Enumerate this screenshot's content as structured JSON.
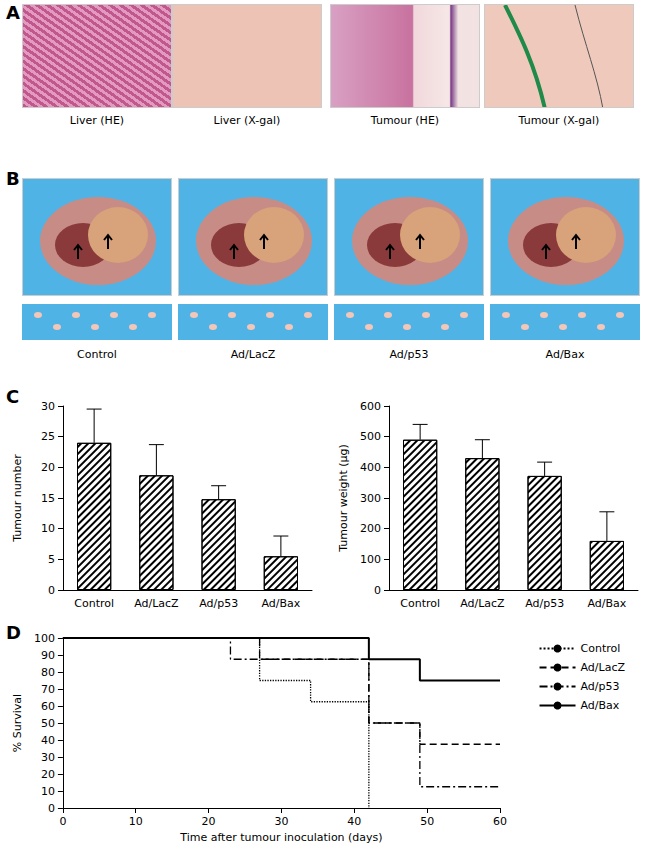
{
  "panel_labels": [
    "A",
    "B",
    "C",
    "D"
  ],
  "panel_A": {
    "images": [
      "Liver (HE)",
      "Liver (X-gal)",
      "Tumour (HE)",
      "Tumour (X-gal)"
    ]
  },
  "panel_B": {
    "images": [
      "Control",
      "Ad/LacZ",
      "Ad/p53",
      "Ad/Bax"
    ]
  },
  "chart_data": [
    {
      "type": "bar",
      "y_label": "Tumour number",
      "categories": [
        "Control",
        "Ad/LacZ",
        "Ad/p53",
        "Ad/Bax"
      ],
      "values": [
        24,
        18.7,
        14.8,
        5.5
      ],
      "errors": [
        5.5,
        5,
        2.2,
        3.3
      ],
      "color": "#000000",
      "ylim": [
        0,
        30
      ],
      "yticks": [
        0,
        5,
        10,
        15,
        20,
        25,
        30
      ],
      "grid": false
    },
    {
      "type": "bar",
      "y_label": "Tumour weight (μg)",
      "categories": [
        "Control",
        "Ad/LacZ",
        "Ad/p53",
        "Ad/Bax"
      ],
      "values": [
        490,
        430,
        372,
        160
      ],
      "errors": [
        50,
        60,
        45,
        95
      ],
      "color": "#000000",
      "ylim": [
        0,
        600
      ],
      "yticks": [
        0,
        100,
        200,
        300,
        400,
        500,
        600
      ],
      "grid": false
    },
    {
      "type": "line",
      "x_label": "Time after tumour inoculation (days)",
      "y_label": "% Survival",
      "xlim": [
        0,
        60
      ],
      "xticks": [
        0,
        10,
        20,
        30,
        40,
        50,
        60
      ],
      "ylim": [
        0,
        100
      ],
      "yticks": [
        0,
        10,
        20,
        30,
        40,
        50,
        60,
        70,
        80,
        90,
        100
      ],
      "grid": false,
      "legend": "right",
      "series": [
        {
          "name": "Control",
          "color": "#000000",
          "line_style": "dotted",
          "x": [
            0,
            27,
            34,
            42
          ],
          "values": [
            100,
            75,
            62.5,
            0
          ]
        },
        {
          "name": "Ad/LacZ",
          "color": "#000000",
          "line_style": "dashed",
          "x": [
            0,
            27,
            42,
            49,
            60
          ],
          "values": [
            100,
            87.5,
            50,
            37.5,
            37.5
          ]
        },
        {
          "name": "Ad/p53",
          "color": "#000000",
          "line_style": "dashdot",
          "x": [
            0,
            23,
            42,
            49,
            60
          ],
          "values": [
            100,
            87.5,
            50,
            12.5,
            12.5
          ]
        },
        {
          "name": "Ad/Bax",
          "color": "#000000",
          "line_style": "solid",
          "x": [
            0,
            42,
            49,
            60
          ],
          "values": [
            100,
            87.5,
            75,
            75
          ]
        }
      ]
    }
  ]
}
